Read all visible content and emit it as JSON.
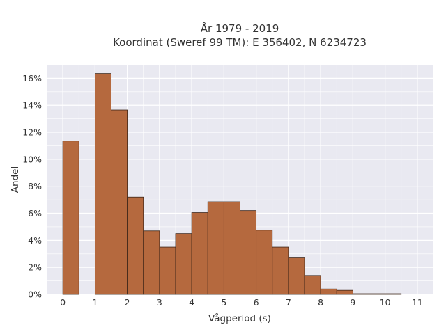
{
  "chart_data": {
    "type": "bar",
    "title_line1": "År 1979 - 2019",
    "title_line2": "Koordinat (Sweref 99 TM): E 356402, N 6234723",
    "xlabel": "Vågperiod (s)",
    "ylabel": "Andel",
    "bin_width": 0.5,
    "bin_starts": [
      0,
      0.5,
      1,
      1.5,
      2,
      2.5,
      3,
      3.5,
      4,
      4.5,
      5,
      5.5,
      6,
      6.5,
      7,
      7.5,
      8,
      8.5,
      9,
      9.5,
      10,
      10.5
    ],
    "values": [
      11.35,
      0,
      16.35,
      13.65,
      7.2,
      4.7,
      3.5,
      4.5,
      6.05,
      6.85,
      6.85,
      6.2,
      4.75,
      3.5,
      2.7,
      1.4,
      0.4,
      0.3,
      0.05,
      0.05,
      0.05,
      0
    ],
    "xlim": [
      -0.5,
      11.5
    ],
    "ylim": [
      0,
      17
    ],
    "x_ticks": [
      "0",
      "1",
      "2",
      "3",
      "4",
      "5",
      "6",
      "7",
      "8",
      "9",
      "10",
      "11"
    ],
    "y_ticks": [
      "0%",
      "2%",
      "4%",
      "6%",
      "8%",
      "10%",
      "12%",
      "14%",
      "16%"
    ],
    "grid": true,
    "colors": {
      "bar_fill": "#b5693e",
      "bar_stroke": "#3d2518",
      "plot_bg": "#e9e9f1",
      "grid": "#ffffff"
    }
  }
}
